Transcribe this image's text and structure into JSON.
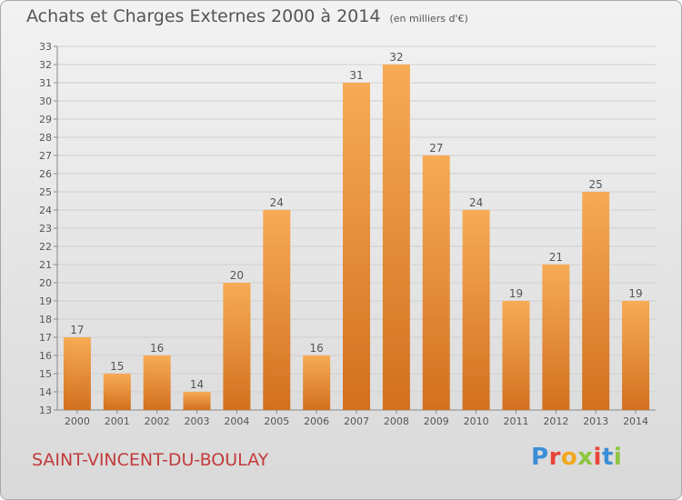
{
  "header": {
    "title": "Achats et Charges Externes 2000 à 2014",
    "unit": "(en milliers d'€)"
  },
  "footer": {
    "city": "SAINT-VINCENT-DU-BOULAY",
    "logo": "Proxiti",
    "logo_colors": [
      "#3b8fd6",
      "#e8443a",
      "#f2a81d",
      "#8cc63f",
      "#e8443a",
      "#3b8fd6",
      "#8cc63f"
    ]
  },
  "colors": {
    "bar_light": "#f7ab55",
    "bar_dark": "#d2701f",
    "text": "#555555",
    "city": "#c23b3b"
  },
  "chart_data": {
    "type": "bar",
    "title": "Achats et Charges Externes 2000 à 2014",
    "subtitle": "(en milliers d'€)",
    "categories": [
      "2000",
      "2001",
      "2002",
      "2003",
      "2004",
      "2005",
      "2006",
      "2007",
      "2008",
      "2009",
      "2010",
      "2011",
      "2012",
      "2013",
      "2014"
    ],
    "values": [
      17,
      15,
      16,
      14,
      20,
      24,
      16,
      31,
      32,
      27,
      24,
      19,
      21,
      25,
      19
    ],
    "ylim": [
      13,
      33
    ],
    "yticks": [
      13,
      14,
      15,
      16,
      17,
      18,
      19,
      20,
      21,
      22,
      23,
      24,
      25,
      26,
      27,
      28,
      29,
      30,
      31,
      32,
      33
    ],
    "grid": true,
    "data_labels": true
  }
}
